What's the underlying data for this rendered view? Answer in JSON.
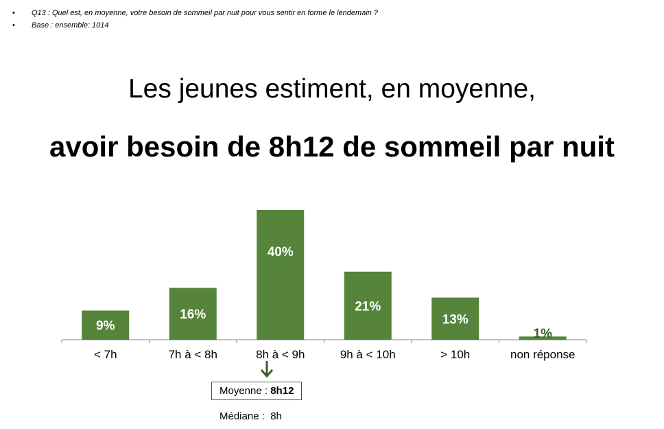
{
  "notes": [
    "Q13 : Quel est, en moyenne, votre besoin de sommeil par nuit pour vous sentir en forme le lendemain ?",
    "Base : ensemble: 1014"
  ],
  "bullet": "•",
  "headline": {
    "line1": "Les jeunes estiment, en moyenne,",
    "line2": "avoir besoin de 8h12 de sommeil par nuit"
  },
  "stats": {
    "moyenne_label": "Moyenne : ",
    "moyenne_value": "8h12",
    "mediane_label": "Médiane :",
    "mediane_value": "8h"
  },
  "colors": {
    "bar": "#55843a",
    "axis": "#888888",
    "arrow": "#3b5e2b"
  },
  "chart_data": {
    "type": "bar",
    "categories": [
      "< 7h",
      "7h à < 8h",
      "8h à < 9h",
      "9h à < 10h",
      "> 10h",
      "non réponse"
    ],
    "values": [
      9,
      16,
      40,
      21,
      13,
      1
    ],
    "value_labels": [
      "9%",
      "16%",
      "40%",
      "21%",
      "13%",
      "1%"
    ],
    "ylim": [
      0,
      40
    ],
    "grid": false,
    "title": "",
    "xlabel": "",
    "ylabel": ""
  }
}
